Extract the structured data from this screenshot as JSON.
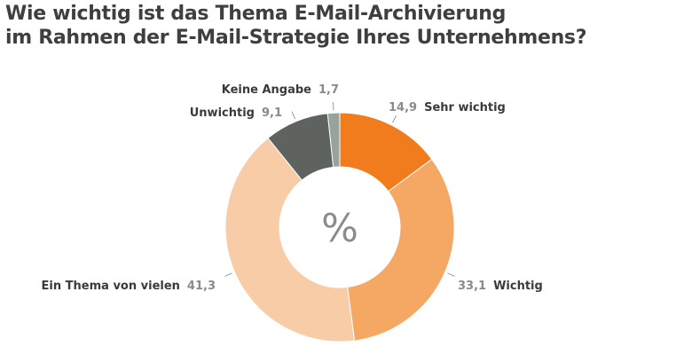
{
  "chart_data": {
    "type": "pie",
    "title_lines": [
      "Wie wichtig ist das Thema E-Mail-Archivierung",
      "im Rahmen der E-Mail-Strategie Ihres Unternehmens?"
    ],
    "center_label": "%",
    "slices": [
      {
        "label": "Sehr wichtig",
        "value": 14.9,
        "value_label": "14,9",
        "color": "#f07c1e"
      },
      {
        "label": "Wichtig",
        "value": 33.1,
        "value_label": "33,1",
        "color": "#f5a764"
      },
      {
        "label": "Ein Thema von vielen",
        "value": 41.3,
        "value_label": "41,3",
        "color": "#f8cca6"
      },
      {
        "label": "Unwichtig",
        "value": 9.1,
        "value_label": "9,1",
        "color": "#5f635f"
      },
      {
        "label": "Keine Angabe",
        "value": 1.7,
        "value_label": "1,7",
        "color": "#9aa29c"
      }
    ]
  }
}
